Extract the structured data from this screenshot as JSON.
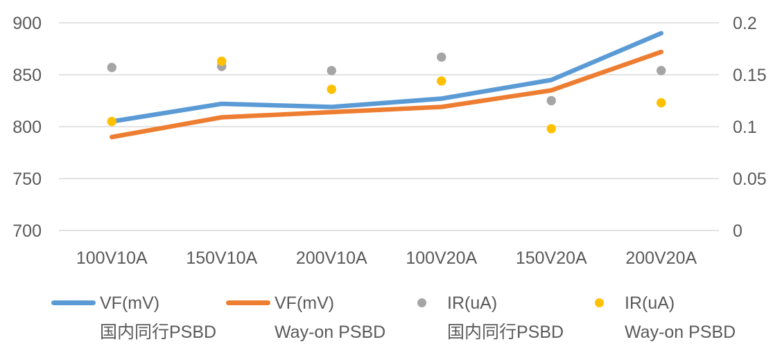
{
  "colors": {
    "background": "#FFFFFF",
    "grid": "#D9D9D9",
    "text": "#595959",
    "blue": "#5B9BD5",
    "orange": "#ED7D31",
    "gray": "#A5A5A5",
    "yellow": "#FFC000"
  },
  "chart_data": {
    "type": "line+scatter",
    "title": "",
    "grid": true,
    "legend_position": "bottom",
    "categories": [
      "100V10A",
      "150V10A",
      "200V10A",
      "100V20A",
      "150V20A",
      "200V20A"
    ],
    "left_axis": {
      "min": 700,
      "max": 900,
      "ticks": [
        900,
        850,
        800,
        750,
        700
      ]
    },
    "right_axis": {
      "min": 0,
      "max": 0.2,
      "ticks": [
        "0.2",
        "0.15",
        "0.1",
        "0.05",
        "0"
      ]
    },
    "series": [
      {
        "name": "VF(mV) 国内同行PSBD",
        "legend_label": "VF(mV)",
        "legend_sublabel": "国内同行PSBD",
        "type": "line",
        "axis": "left",
        "color": "#5B9BD5",
        "values": [
          805,
          822,
          819,
          827,
          845,
          890
        ]
      },
      {
        "name": "VF(mV) Way-on PSBD",
        "legend_label": "VF(mV)",
        "legend_sublabel": "Way-on PSBD",
        "type": "line",
        "axis": "left",
        "color": "#ED7D31",
        "values": [
          790,
          809,
          814,
          819,
          835,
          872
        ]
      },
      {
        "name": "IR(uA) 国内同行PSBD",
        "legend_label": "IR(uA)",
        "legend_sublabel": "国内同行PSBD",
        "type": "scatter",
        "axis": "right",
        "color": "#A5A5A5",
        "values": [
          0.157,
          0.158,
          0.154,
          0.167,
          0.125,
          0.154
        ]
      },
      {
        "name": "IR(uA) Way-on PSBD",
        "legend_label": "IR(uA)",
        "legend_sublabel": "Way-on PSBD",
        "type": "scatter",
        "axis": "right",
        "color": "#FFC000",
        "values": [
          0.105,
          0.163,
          0.136,
          0.144,
          0.098,
          0.123
        ]
      }
    ]
  }
}
